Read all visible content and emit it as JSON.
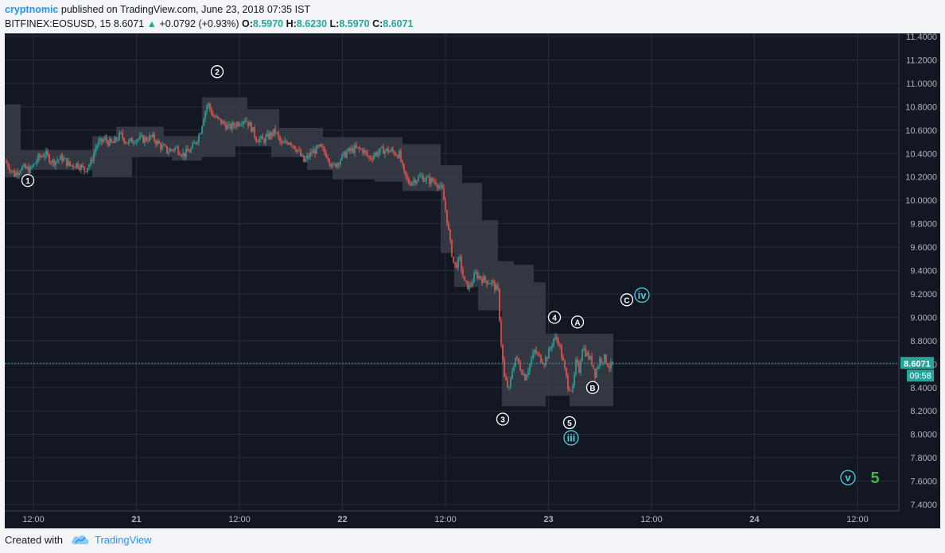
{
  "header": {
    "author": "cryptnomic",
    "published_text": " published on TradingView.com, June 23, 2018 07:35 IST"
  },
  "legend": {
    "symbol": "BITFINEX:EOSUSD, 15",
    "last": "8.6071",
    "change": "+0.0792 (+0.93%)",
    "o_label": "O:",
    "o_value": "8.5970",
    "h_label": "H:",
    "h_value": "8.6230",
    "l_label": "L:",
    "l_value": "8.5970",
    "c_label": "C:",
    "c_value": "8.6071"
  },
  "footer": {
    "created_with": "Created with",
    "brand": "TradingView"
  },
  "colors": {
    "background": "#131722",
    "grid": "#2a2e39",
    "up": "#26a69a",
    "down": "#ef5350",
    "band": "#3a3d46",
    "price_line": "#26a69a",
    "accent": "#2196f3",
    "wave_count": "#4caf50"
  },
  "chart_data": {
    "type": "candlestick",
    "title": "",
    "ylim": [
      7.4,
      11.4
    ],
    "y_ticks": [
      "11.4000",
      "11.2000",
      "11.0000",
      "10.8000",
      "10.6000",
      "10.4000",
      "10.2000",
      "10.0000",
      "9.8000",
      "9.6000",
      "9.4000",
      "9.2000",
      "9.0000",
      "8.8000",
      "8.6000",
      "8.4000",
      "8.2000",
      "8.0000",
      "7.8000",
      "7.6000",
      "7.4000"
    ],
    "x_ticks": [
      "12:00",
      "21",
      "12:00",
      "22",
      "12:00",
      "23",
      "12:00",
      "24",
      "12:00"
    ],
    "current_price": "8.6071",
    "countdown": "09:58",
    "price_path": [
      [
        0,
        10.34
      ],
      [
        12,
        10.22
      ],
      [
        20,
        10.28
      ],
      [
        32,
        10.26
      ],
      [
        42,
        10.36
      ],
      [
        50,
        10.4
      ],
      [
        60,
        10.33
      ],
      [
        72,
        10.36
      ],
      [
        82,
        10.3
      ],
      [
        92,
        10.31
      ],
      [
        100,
        10.26
      ],
      [
        108,
        10.32
      ],
      [
        115,
        10.47
      ],
      [
        125,
        10.52
      ],
      [
        135,
        10.48
      ],
      [
        145,
        10.56
      ],
      [
        155,
        10.49
      ],
      [
        165,
        10.53
      ],
      [
        175,
        10.52
      ],
      [
        185,
        10.54
      ],
      [
        195,
        10.47
      ],
      [
        205,
        10.42
      ],
      [
        215,
        10.45
      ],
      [
        225,
        10.39
      ],
      [
        235,
        10.44
      ],
      [
        245,
        10.57
      ],
      [
        250,
        10.72
      ],
      [
        255,
        10.83
      ],
      [
        262,
        10.72
      ],
      [
        272,
        10.67
      ],
      [
        282,
        10.62
      ],
      [
        292,
        10.66
      ],
      [
        302,
        10.7
      ],
      [
        310,
        10.62
      ],
      [
        316,
        10.53
      ],
      [
        324,
        10.51
      ],
      [
        332,
        10.55
      ],
      [
        340,
        10.59
      ],
      [
        348,
        10.47
      ],
      [
        358,
        10.51
      ],
      [
        368,
        10.43
      ],
      [
        376,
        10.33
      ],
      [
        386,
        10.41
      ],
      [
        396,
        10.45
      ],
      [
        406,
        10.38
      ],
      [
        412,
        10.28
      ],
      [
        420,
        10.34
      ],
      [
        430,
        10.41
      ],
      [
        440,
        10.44
      ],
      [
        450,
        10.43
      ],
      [
        458,
        10.36
      ],
      [
        466,
        10.4
      ],
      [
        476,
        10.43
      ],
      [
        486,
        10.42
      ],
      [
        496,
        10.39
      ],
      [
        502,
        10.22
      ],
      [
        508,
        10.15
      ],
      [
        516,
        10.18
      ],
      [
        524,
        10.2
      ],
      [
        534,
        10.17
      ],
      [
        542,
        10.16
      ],
      [
        550,
        10.08
      ],
      [
        555,
        9.88
      ],
      [
        560,
        9.63
      ],
      [
        565,
        9.43
      ],
      [
        572,
        9.49
      ],
      [
        578,
        9.29
      ],
      [
        584,
        9.26
      ],
      [
        592,
        9.37
      ],
      [
        600,
        9.33
      ],
      [
        606,
        9.31
      ],
      [
        612,
        9.3
      ],
      [
        620,
        9.22
      ],
      [
        624,
        8.78
      ],
      [
        628,
        8.48
      ],
      [
        634,
        8.38
      ],
      [
        638,
        8.55
      ],
      [
        642,
        8.66
      ],
      [
        648,
        8.57
      ],
      [
        654,
        8.49
      ],
      [
        660,
        8.6
      ],
      [
        666,
        8.71
      ],
      [
        672,
        8.66
      ],
      [
        678,
        8.62
      ],
      [
        684,
        8.7
      ],
      [
        690,
        8.82
      ],
      [
        696,
        8.8
      ],
      [
        702,
        8.61
      ],
      [
        708,
        8.42
      ],
      [
        714,
        8.38
      ],
      [
        718,
        8.61
      ],
      [
        722,
        8.55
      ],
      [
        726,
        8.75
      ],
      [
        732,
        8.68
      ],
      [
        738,
        8.62
      ],
      [
        742,
        8.52
      ],
      [
        748,
        8.64
      ],
      [
        754,
        8.65
      ],
      [
        760,
        8.58
      ],
      [
        766,
        8.6
      ]
    ],
    "band": {
      "upper": [
        [
          0,
          10.82
        ],
        [
          20,
          10.82
        ],
        [
          20,
          10.43
        ],
        [
          110,
          10.43
        ],
        [
          110,
          10.55
        ],
        [
          140,
          10.55
        ],
        [
          140,
          10.63
        ],
        [
          200,
          10.63
        ],
        [
          200,
          10.55
        ],
        [
          248,
          10.55
        ],
        [
          248,
          10.88
        ],
        [
          305,
          10.88
        ],
        [
          305,
          10.78
        ],
        [
          345,
          10.78
        ],
        [
          345,
          10.62
        ],
        [
          400,
          10.62
        ],
        [
          400,
          10.54
        ],
        [
          500,
          10.54
        ],
        [
          500,
          10.48
        ],
        [
          548,
          10.48
        ],
        [
          548,
          10.3
        ],
        [
          575,
          10.3
        ],
        [
          575,
          10.15
        ],
        [
          600,
          10.15
        ],
        [
          600,
          9.83
        ],
        [
          620,
          9.83
        ],
        [
          620,
          9.48
        ],
        [
          640,
          9.48
        ],
        [
          640,
          9.45
        ],
        [
          665,
          9.45
        ],
        [
          665,
          9.3
        ],
        [
          680,
          9.3
        ],
        [
          680,
          8.86
        ],
        [
          765,
          8.86
        ]
      ],
      "lower": [
        [
          0,
          10.2
        ],
        [
          30,
          10.2
        ],
        [
          30,
          10.26
        ],
        [
          110,
          10.26
        ],
        [
          110,
          10.2
        ],
        [
          160,
          10.2
        ],
        [
          160,
          10.37
        ],
        [
          210,
          10.37
        ],
        [
          210,
          10.34
        ],
        [
          248,
          10.34
        ],
        [
          248,
          10.37
        ],
        [
          290,
          10.37
        ],
        [
          290,
          10.46
        ],
        [
          335,
          10.46
        ],
        [
          335,
          10.37
        ],
        [
          380,
          10.37
        ],
        [
          380,
          10.26
        ],
        [
          412,
          10.26
        ],
        [
          412,
          10.18
        ],
        [
          465,
          10.18
        ],
        [
          465,
          10.16
        ],
        [
          500,
          10.16
        ],
        [
          500,
          10.08
        ],
        [
          548,
          10.08
        ],
        [
          548,
          9.55
        ],
        [
          565,
          9.55
        ],
        [
          565,
          9.26
        ],
        [
          595,
          9.26
        ],
        [
          595,
          9.06
        ],
        [
          625,
          9.06
        ],
        [
          625,
          8.24
        ],
        [
          680,
          8.24
        ],
        [
          680,
          8.33
        ],
        [
          710,
          8.33
        ],
        [
          710,
          8.24
        ],
        [
          765,
          8.24
        ]
      ]
    },
    "annotations": [
      {
        "label": "1",
        "style": "white",
        "x": 29,
        "y": 10.17
      },
      {
        "label": "2",
        "style": "white",
        "x": 267,
        "y": 11.1
      },
      {
        "label": "3",
        "style": "white",
        "x": 626,
        "y": 8.13
      },
      {
        "label": "4",
        "style": "white",
        "x": 691,
        "y": 9.0
      },
      {
        "label": "5",
        "style": "white",
        "x": 710,
        "y": 8.1
      },
      {
        "label": "A",
        "style": "white",
        "x": 720,
        "y": 8.96
      },
      {
        "label": "B",
        "style": "white",
        "x": 739,
        "y": 8.4
      },
      {
        "label": "C",
        "style": "white",
        "x": 782,
        "y": 9.15
      },
      {
        "label": "iii",
        "style": "cyan",
        "x": 712,
        "y": 7.97
      },
      {
        "label": "iv",
        "style": "cyan",
        "x": 801,
        "y": 9.19
      },
      {
        "label": "v",
        "style": "cyan",
        "x": 1060,
        "y": 7.63
      }
    ],
    "wave_label": "5"
  }
}
